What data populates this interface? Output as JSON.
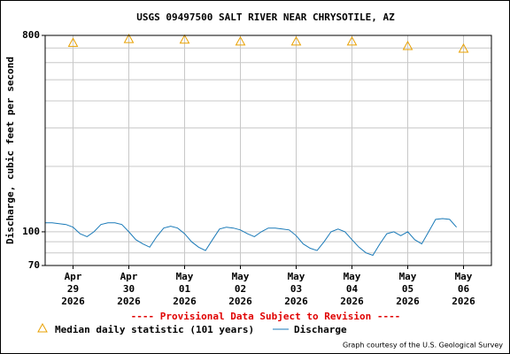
{
  "chart_data": {
    "type": "line",
    "title": "USGS 09497500 SALT RIVER NEAR CHRYSOTILE, AZ",
    "y_label": "Discharge, cubic feet per second",
    "notice": "---- Provisional Data Subject to Revision ----",
    "credit": "Graph courtesy of the U.S. Geological Survey",
    "log_y": true,
    "grid": true,
    "ylim": [
      70,
      800
    ],
    "yticks": [
      70,
      100,
      800
    ],
    "minor_yticks": [
      80,
      90,
      200,
      300,
      400,
      500,
      600,
      700
    ],
    "xlim": [
      -0.5,
      7.5
    ],
    "xticks": [
      {
        "value": 0,
        "month": "Apr",
        "day": "29",
        "year": "2026"
      },
      {
        "value": 1,
        "month": "Apr",
        "day": "30",
        "year": "2026"
      },
      {
        "value": 2,
        "month": "May",
        "day": "01",
        "year": "2026"
      },
      {
        "value": 3,
        "month": "May",
        "day": "02",
        "year": "2026"
      },
      {
        "value": 4,
        "month": "May",
        "day": "03",
        "year": "2026"
      },
      {
        "value": 5,
        "month": "May",
        "day": "04",
        "year": "2026"
      },
      {
        "value": 6,
        "month": "May",
        "day": "05",
        "year": "2026"
      },
      {
        "value": 7,
        "month": "May",
        "day": "06",
        "year": "2026"
      }
    ],
    "series": [
      {
        "name": "Median daily statistic (101 years)",
        "color": "#e8a000",
        "marker": "triangle",
        "x": [
          0,
          1,
          2,
          3,
          4,
          5,
          6,
          7
        ],
        "values": [
          740,
          770,
          765,
          750,
          750,
          750,
          715,
          695
        ]
      },
      {
        "name": "Discharge",
        "color": "#1a7ab8",
        "marker": "line",
        "x": [
          -0.5,
          -0.375,
          -0.25,
          -0.125,
          0,
          0.125,
          0.25,
          0.375,
          0.5,
          0.625,
          0.75,
          0.875,
          1,
          1.125,
          1.25,
          1.375,
          1.5,
          1.625,
          1.75,
          1.875,
          2,
          2.125,
          2.25,
          2.375,
          2.5,
          2.625,
          2.75,
          2.875,
          3,
          3.125,
          3.25,
          3.375,
          3.5,
          3.625,
          3.75,
          3.875,
          4,
          4.125,
          4.25,
          4.375,
          4.5,
          4.625,
          4.75,
          4.875,
          5,
          5.125,
          5.25,
          5.375,
          5.5,
          5.625,
          5.75,
          5.875,
          6,
          6.125,
          6.25,
          6.375,
          6.5,
          6.625,
          6.75,
          6.875
        ],
        "values": [
          110,
          110,
          109,
          108,
          105,
          98,
          95,
          100,
          108,
          110,
          110,
          108,
          100,
          92,
          88,
          85,
          95,
          104,
          106,
          104,
          98,
          90,
          85,
          82,
          92,
          103,
          105,
          104,
          102,
          98,
          95,
          100,
          104,
          104,
          103,
          102,
          96,
          88,
          84,
          82,
          90,
          100,
          103,
          100,
          92,
          85,
          80,
          78,
          88,
          98,
          100,
          96,
          100,
          92,
          88,
          100,
          114,
          115,
          114,
          105
        ]
      }
    ]
  }
}
